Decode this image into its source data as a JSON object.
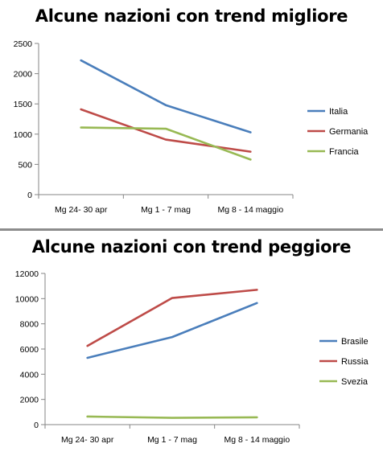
{
  "chart_data": [
    {
      "type": "line",
      "title": "Alcune nazioni con trend migliore",
      "categories": [
        "Mg 24- 30 apr",
        "Mg 1 - 7 mag",
        "Mg 8 - 14 maggio"
      ],
      "ylim": [
        0,
        2500
      ],
      "yticks": [
        0,
        500,
        1000,
        1500,
        2000,
        2500
      ],
      "legend_position": "right",
      "grid": false,
      "series": [
        {
          "name": "Italia",
          "values": [
            2220,
            1480,
            1030
          ],
          "color": "#4a7ebb"
        },
        {
          "name": "Germania",
          "values": [
            1410,
            910,
            710
          ],
          "color": "#be4b48"
        },
        {
          "name": "Francia",
          "values": [
            1110,
            1090,
            580
          ],
          "color": "#98b954"
        }
      ]
    },
    {
      "type": "line",
      "title": "Alcune nazioni con trend peggiore",
      "categories": [
        "Mg 24- 30 apr",
        "Mg 1 - 7 mag",
        "Mg 8 - 14 maggio"
      ],
      "ylim": [
        0,
        12000
      ],
      "yticks": [
        0,
        2000,
        4000,
        6000,
        8000,
        10000,
        12000
      ],
      "legend_position": "right",
      "grid": false,
      "series": [
        {
          "name": "Brasile",
          "values": [
            5300,
            6950,
            9650
          ],
          "color": "#4a7ebb"
        },
        {
          "name": "Russia",
          "values": [
            6250,
            10050,
            10700
          ],
          "color": "#be4b48"
        },
        {
          "name": "Svezia",
          "values": [
            640,
            540,
            580
          ],
          "color": "#98b954"
        }
      ]
    }
  ]
}
